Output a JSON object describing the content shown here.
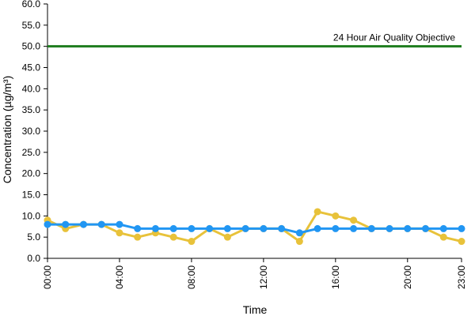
{
  "chart_data": {
    "type": "line",
    "xlabel": "Time",
    "ylabel": "Concentration (µg/m³)",
    "ylim": [
      0,
      60
    ],
    "y_ticks": [
      "0.0",
      "5.0",
      "10.0",
      "15.0",
      "20.0",
      "25.0",
      "30.0",
      "35.0",
      "40.0",
      "45.0",
      "50.0",
      "55.0",
      "60.0"
    ],
    "x_ticks": [
      {
        "hour": 0,
        "label": "00:00"
      },
      {
        "hour": 4,
        "label": "04:00"
      },
      {
        "hour": 8,
        "label": "08:00"
      },
      {
        "hour": 12,
        "label": "12:00"
      },
      {
        "hour": 16,
        "label": "16:00"
      },
      {
        "hour": 20,
        "label": "20:00"
      },
      {
        "hour": 23,
        "label": "23:00"
      }
    ],
    "x": [
      0,
      1,
      2,
      3,
      4,
      5,
      6,
      7,
      8,
      9,
      10,
      11,
      12,
      13,
      14,
      15,
      16,
      17,
      18,
      19,
      20,
      21,
      22,
      23
    ],
    "series": [
      {
        "color": "#e8c23a",
        "values": [
          9,
          7,
          8,
          8,
          6,
          5,
          6,
          5,
          4,
          7,
          5,
          7,
          7,
          7,
          4,
          11,
          10,
          9,
          7,
          7,
          7,
          7,
          5,
          4
        ]
      },
      {
        "color": "#2196f3",
        "values": [
          8,
          8,
          8,
          8,
          8,
          7,
          7,
          7,
          7,
          7,
          7,
          7,
          7,
          7,
          6,
          7,
          7,
          7,
          7,
          7,
          7,
          7,
          7,
          7
        ]
      }
    ],
    "reference_line": {
      "value": 50,
      "label": "24 Hour Air Quality Objective",
      "color": "#1e7d1e"
    },
    "grid": false,
    "legend": "none"
  }
}
